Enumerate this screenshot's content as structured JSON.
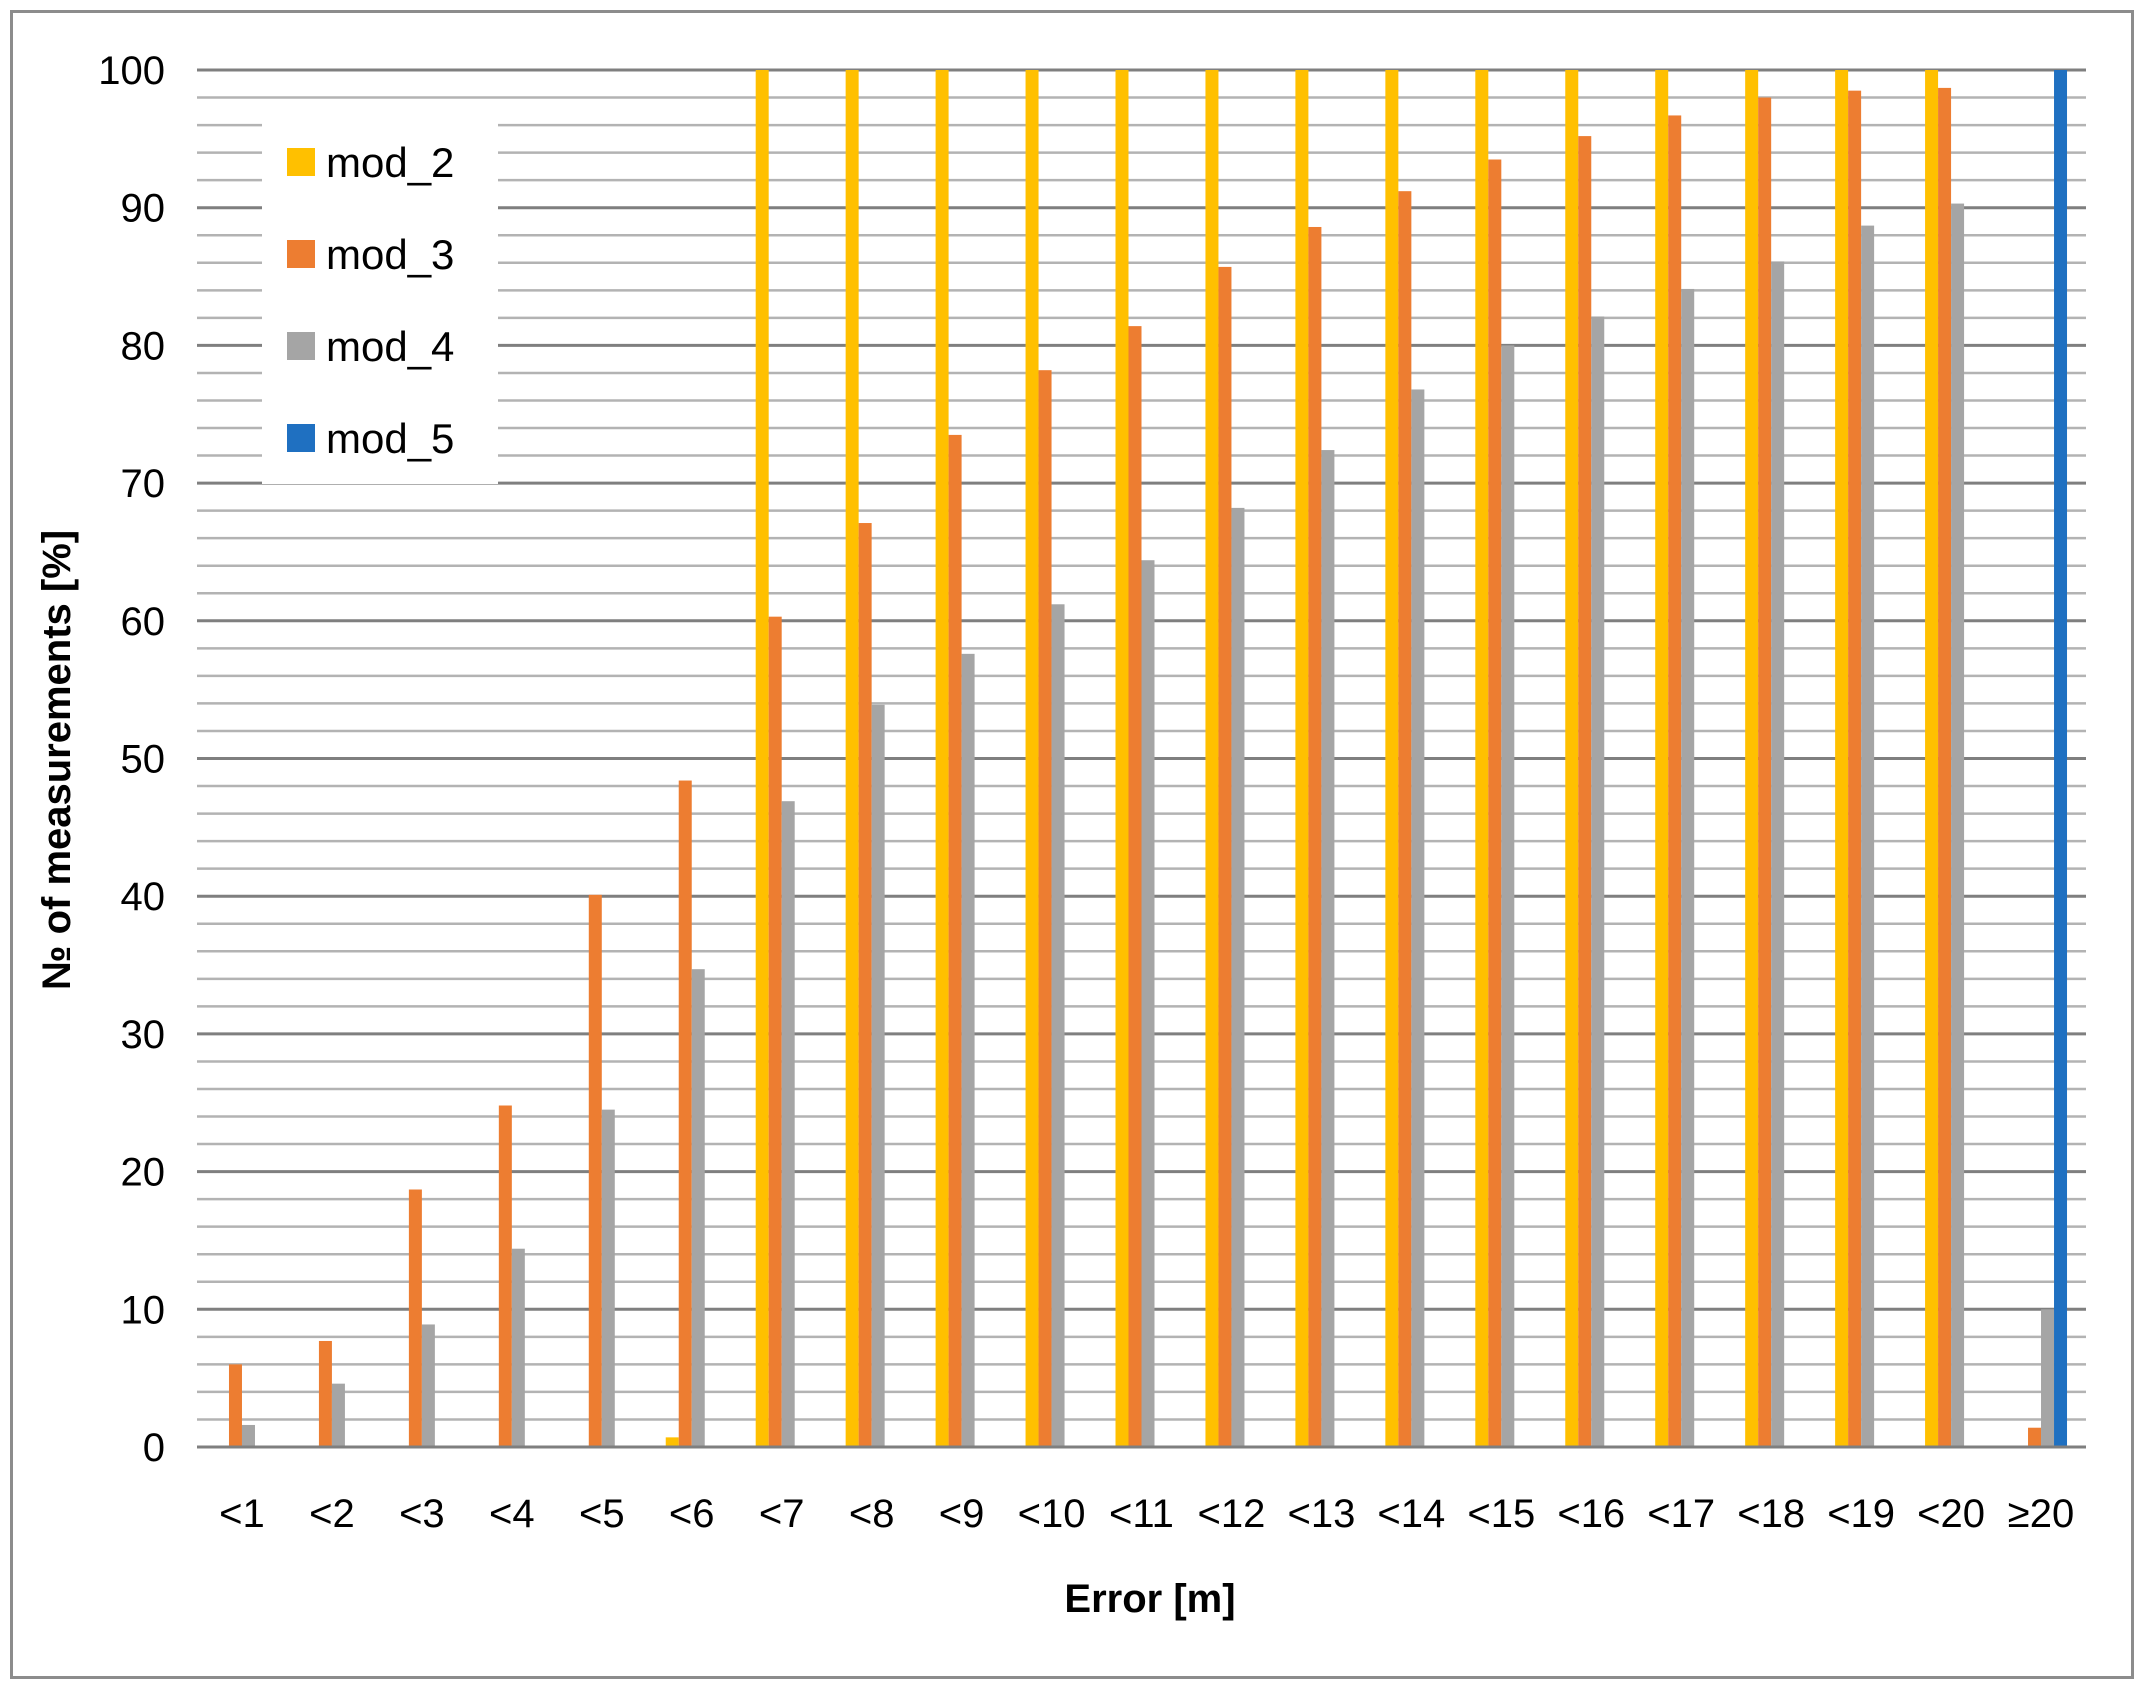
{
  "chart_data": {
    "type": "bar",
    "title": "",
    "xlabel": "Error [m]",
    "ylabel": "№ of measurements [%]",
    "ylim": [
      0,
      100
    ],
    "y_ticks": [
      "0",
      "10",
      "20",
      "30",
      "40",
      "50",
      "60",
      "70",
      "80",
      "90",
      "100"
    ],
    "y_tick_values": [
      0,
      10,
      20,
      30,
      40,
      50,
      60,
      70,
      80,
      90,
      100
    ],
    "grid": true,
    "legend_position": "top-left",
    "categories": [
      "<1",
      "<2",
      "<3",
      "<4",
      "<5",
      "<6",
      "<7",
      "<8",
      "<9",
      "<10",
      "<11",
      "<12",
      "<13",
      "<14",
      "<15",
      "<16",
      "<17",
      "<18",
      "<19",
      "<20",
      "≥20"
    ],
    "series": [
      {
        "name": "mod_2",
        "color": "#FFC000",
        "values": [
          0,
          0,
          0,
          0,
          0,
          0.7,
          100,
          100,
          100,
          100,
          100,
          100,
          100,
          100,
          100,
          100,
          100,
          100,
          100,
          100,
          0
        ]
      },
      {
        "name": "mod_3",
        "color": "#ED7D31",
        "values": [
          6.0,
          7.7,
          18.7,
          24.8,
          40.1,
          48.4,
          60.3,
          67.1,
          73.5,
          78.2,
          81.4,
          85.7,
          88.6,
          91.2,
          93.5,
          95.2,
          96.7,
          98.0,
          98.5,
          98.7,
          1.4
        ]
      },
      {
        "name": "mod_4",
        "color": "#A5A5A5",
        "values": [
          1.6,
          4.6,
          8.9,
          14.4,
          24.5,
          34.7,
          46.9,
          53.9,
          57.6,
          61.2,
          64.4,
          68.2,
          72.4,
          76.8,
          80.0,
          82.1,
          84.1,
          86.1,
          88.7,
          90.3,
          10.0
        ]
      },
      {
        "name": "mod_5",
        "color": "#1F70C1",
        "values": [
          0,
          0,
          0,
          0,
          0,
          0,
          0,
          0,
          0,
          0,
          0,
          0,
          0,
          0,
          0,
          0,
          0,
          0,
          0,
          0,
          100
        ]
      }
    ]
  },
  "colors": {
    "major_grid": "#7f7f7f",
    "minor_grid": "#b3b3b3",
    "frame_border": "#8c8c8c"
  }
}
